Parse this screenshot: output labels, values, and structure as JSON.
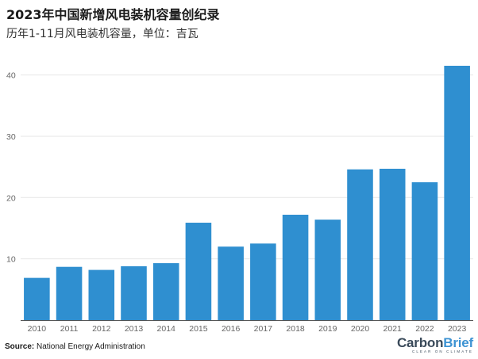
{
  "header": {
    "title": "2023年中国新增风电装机容量创纪录",
    "subtitle": "历年1-11月风电装机容量，单位：吉瓦"
  },
  "footer": {
    "source_label": "Source:",
    "source_text": "National Energy Administration",
    "logo_carbon": "Carbon",
    "logo_brief": "Brief",
    "logo_tagline": "CLEAR ON CLIMATE"
  },
  "colors": {
    "bar": "#2f8fd0",
    "grid": "#e6e6e6",
    "axis": "#555555",
    "tick_text": "#666666"
  },
  "chart_data": {
    "type": "bar",
    "categories": [
      "2010",
      "2011",
      "2012",
      "2013",
      "2014",
      "2015",
      "2016",
      "2017",
      "2018",
      "2019",
      "2020",
      "2021",
      "2022",
      "2023"
    ],
    "values": [
      6.9,
      8.7,
      8.2,
      8.8,
      9.3,
      15.9,
      12.0,
      12.5,
      17.2,
      16.4,
      24.6,
      24.7,
      22.5,
      41.5
    ],
    "title": "2023年中国新增风电装机容量创纪录",
    "subtitle": "历年1-11月风电装机容量，单位：吉瓦",
    "xlabel": "",
    "ylabel": "",
    "ylim": [
      0,
      40
    ],
    "yticks": [
      10,
      20,
      30,
      40
    ],
    "grid": true,
    "legend": "none"
  }
}
